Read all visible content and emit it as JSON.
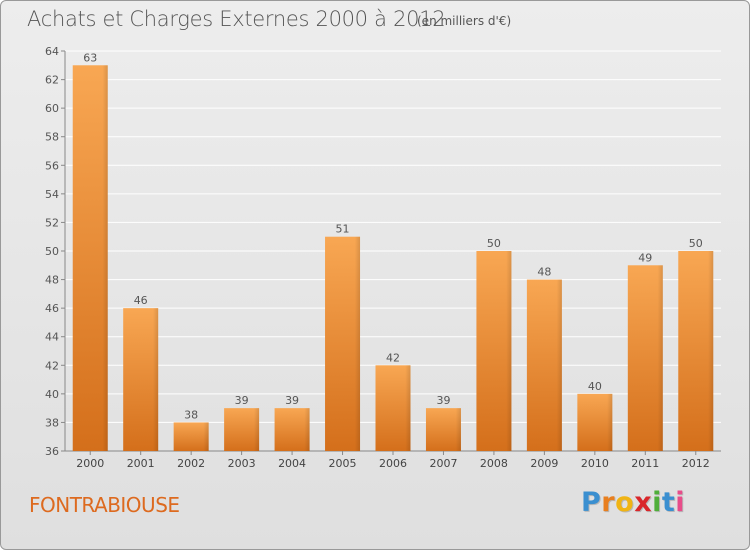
{
  "header": {
    "title": "Achats et Charges Externes 2000 à 2012",
    "subtitle": "(en milliers d'€)"
  },
  "footer": {
    "town": "FONTRABIOUSE",
    "logo_letters": [
      "P",
      "r",
      "o",
      "x",
      "i",
      "t",
      "i"
    ],
    "logo_colors": [
      "#3a8fd0",
      "#e87f1f",
      "#f0b414",
      "#d9262a",
      "#4fae3a",
      "#3a8fd0",
      "#e84d8a"
    ]
  },
  "colors": {
    "bar_light": "#f8a753",
    "bar_dark": "#d46f1b",
    "grid": "#ffffff",
    "text": "#555555",
    "accent": "#dd6a1f"
  },
  "chart_data": {
    "type": "bar",
    "categories": [
      "2000",
      "2001",
      "2002",
      "2003",
      "2004",
      "2005",
      "2006",
      "2007",
      "2008",
      "2009",
      "2010",
      "2011",
      "2012"
    ],
    "values": [
      63,
      46,
      38,
      39,
      39,
      51,
      42,
      39,
      50,
      48,
      40,
      49,
      50
    ],
    "ylim": [
      36,
      64
    ],
    "yticks": [
      36,
      38,
      40,
      42,
      44,
      46,
      48,
      50,
      52,
      54,
      56,
      58,
      60,
      62,
      64
    ],
    "grid": true,
    "data_labels": true
  }
}
